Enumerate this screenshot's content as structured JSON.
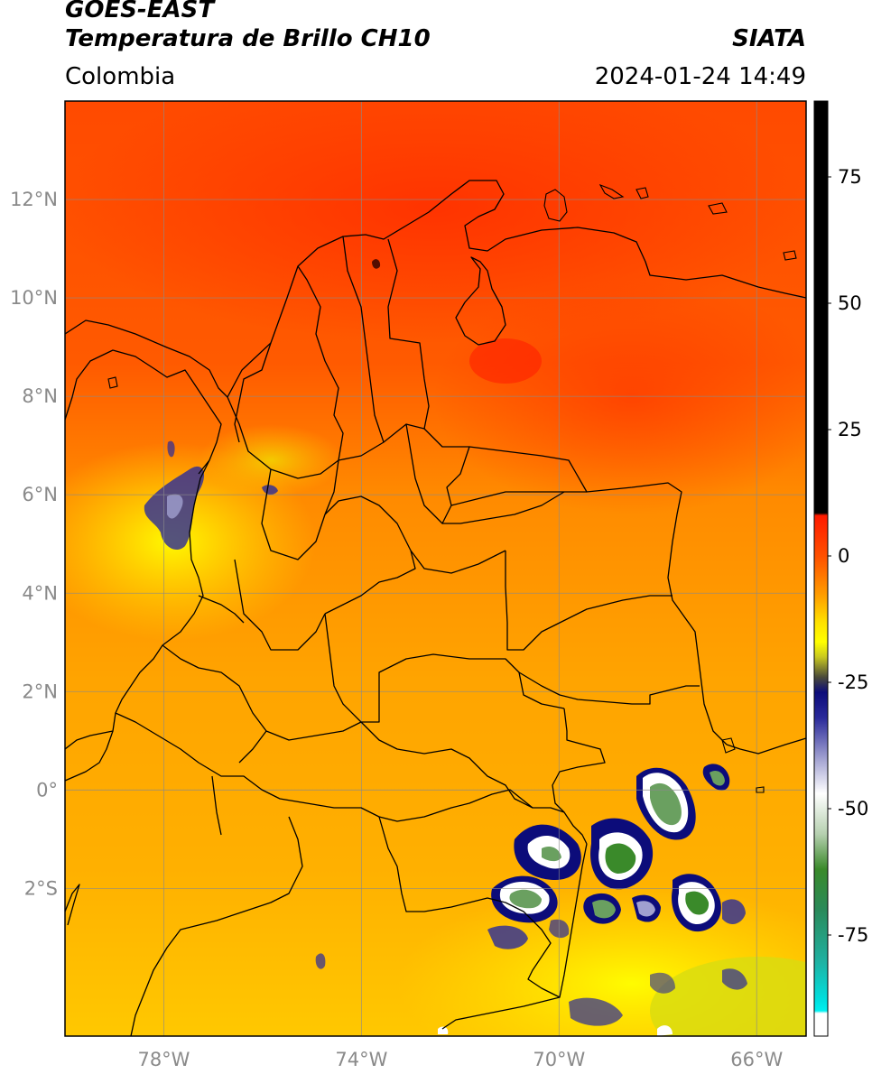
{
  "header": {
    "satellite": "GOES-EAST",
    "product": "Temperatura de Brillo CH10",
    "region": "Colombia",
    "agency": "SIATA",
    "datetime": "2024-01-24 14:49"
  },
  "map": {
    "lon_range": [
      -80,
      -65
    ],
    "lat_range": [
      -5,
      14
    ],
    "lat_ticks": [
      {
        "value": 12,
        "label": "12°N"
      },
      {
        "value": 10,
        "label": "10°N"
      },
      {
        "value": 8,
        "label": "8°N"
      },
      {
        "value": 6,
        "label": "6°N"
      },
      {
        "value": 4,
        "label": "4°N"
      },
      {
        "value": 2,
        "label": "2°N"
      },
      {
        "value": 0,
        "label": "0°"
      },
      {
        "value": -2,
        "label": "2°S"
      }
    ],
    "lon_ticks": [
      {
        "value": -78,
        "label": "78°W"
      },
      {
        "value": -74,
        "label": "74°W"
      },
      {
        "value": -70,
        "label": "70°W"
      },
      {
        "value": -66,
        "label": "66°W"
      }
    ],
    "gridlines": true
  },
  "colorbar": {
    "range": [
      -95,
      90
    ],
    "ticks": [
      {
        "value": 75,
        "label": "75"
      },
      {
        "value": 50,
        "label": "50"
      },
      {
        "value": 25,
        "label": "25"
      },
      {
        "value": 0,
        "label": "0"
      },
      {
        "value": -25,
        "label": "-25"
      },
      {
        "value": -50,
        "label": "-50"
      },
      {
        "value": -75,
        "label": "-75"
      }
    ],
    "stops": [
      {
        "value": 90,
        "color": "#000000"
      },
      {
        "value": 8.5,
        "color": "#000000"
      },
      {
        "value": 8,
        "color": "#ff1a00"
      },
      {
        "value": 0,
        "color": "#ff5000"
      },
      {
        "value": -8,
        "color": "#ffa000"
      },
      {
        "value": -13,
        "color": "#ffe000"
      },
      {
        "value": -17,
        "color": "#ffff00"
      },
      {
        "value": -20,
        "color": "#c8c820"
      },
      {
        "value": -24,
        "color": "#4a4a3a"
      },
      {
        "value": -27,
        "color": "#0c0c7a"
      },
      {
        "value": -32,
        "color": "#2a2a9a"
      },
      {
        "value": -40,
        "color": "#a0a0d0"
      },
      {
        "value": -47,
        "color": "#ffffff"
      },
      {
        "value": -55,
        "color": "#b6d0b0"
      },
      {
        "value": -62,
        "color": "#3a8a2a"
      },
      {
        "value": -70,
        "color": "#2a8a5a"
      },
      {
        "value": -80,
        "color": "#20b0a0"
      },
      {
        "value": -88,
        "color": "#00e0e0"
      },
      {
        "value": -90,
        "color": "#00f0f0"
      },
      {
        "value": -90.5,
        "color": "#ffffff"
      },
      {
        "value": -95,
        "color": "#ffffff"
      }
    ]
  }
}
